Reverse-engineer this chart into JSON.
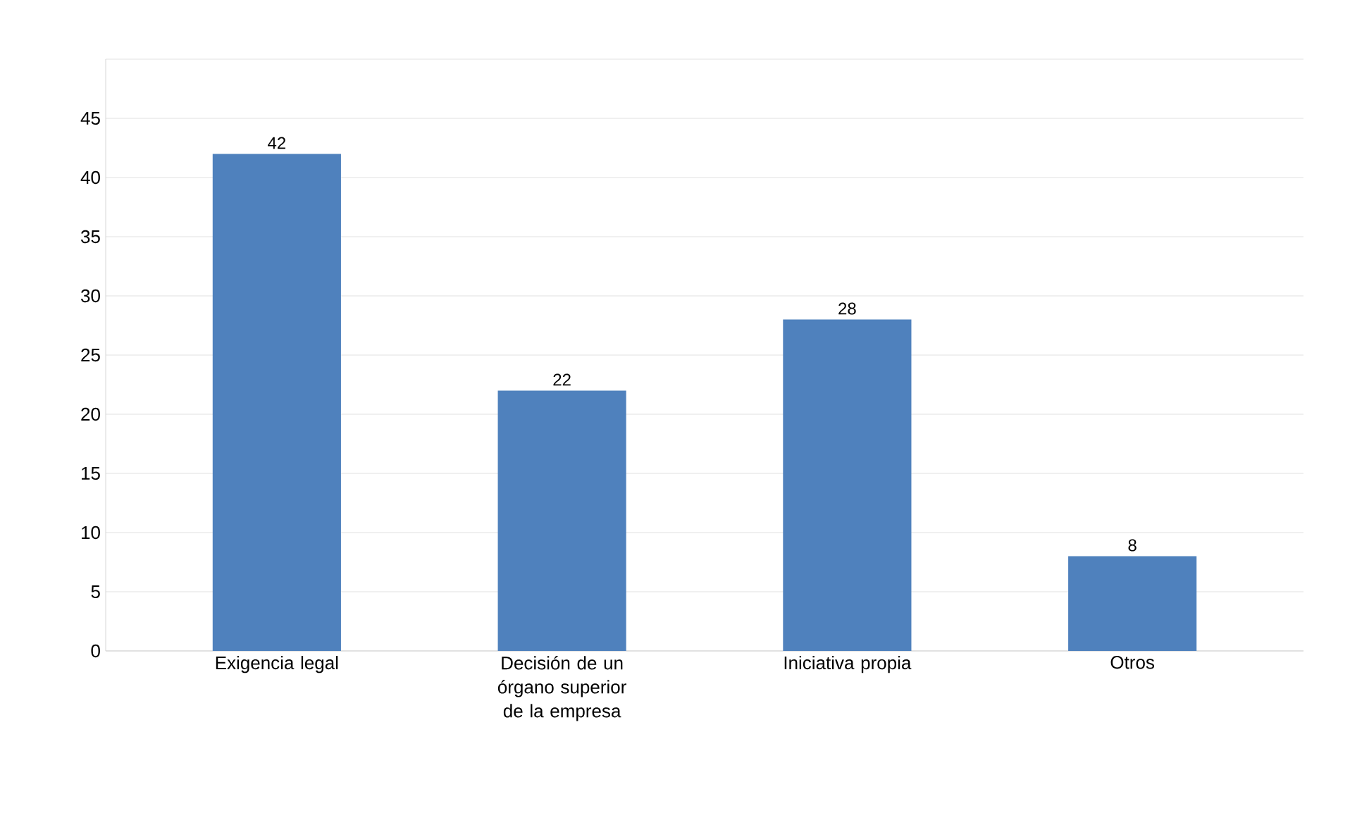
{
  "chart_data": {
    "type": "bar",
    "categories": [
      "Exigencia legal",
      "Decisión de un órgano superior de la empresa",
      "Iniciativa propia",
      "Otros"
    ],
    "values": [
      42,
      22,
      28,
      8
    ],
    "color": "#4f81bd",
    "ylim": [
      0,
      50
    ],
    "yticks": [
      0,
      5,
      10,
      15,
      20,
      25,
      30,
      35,
      40,
      45,
      {
        "value": 50,
        "label": null
      }
    ],
    "grid": "y",
    "data_labels": true
  }
}
